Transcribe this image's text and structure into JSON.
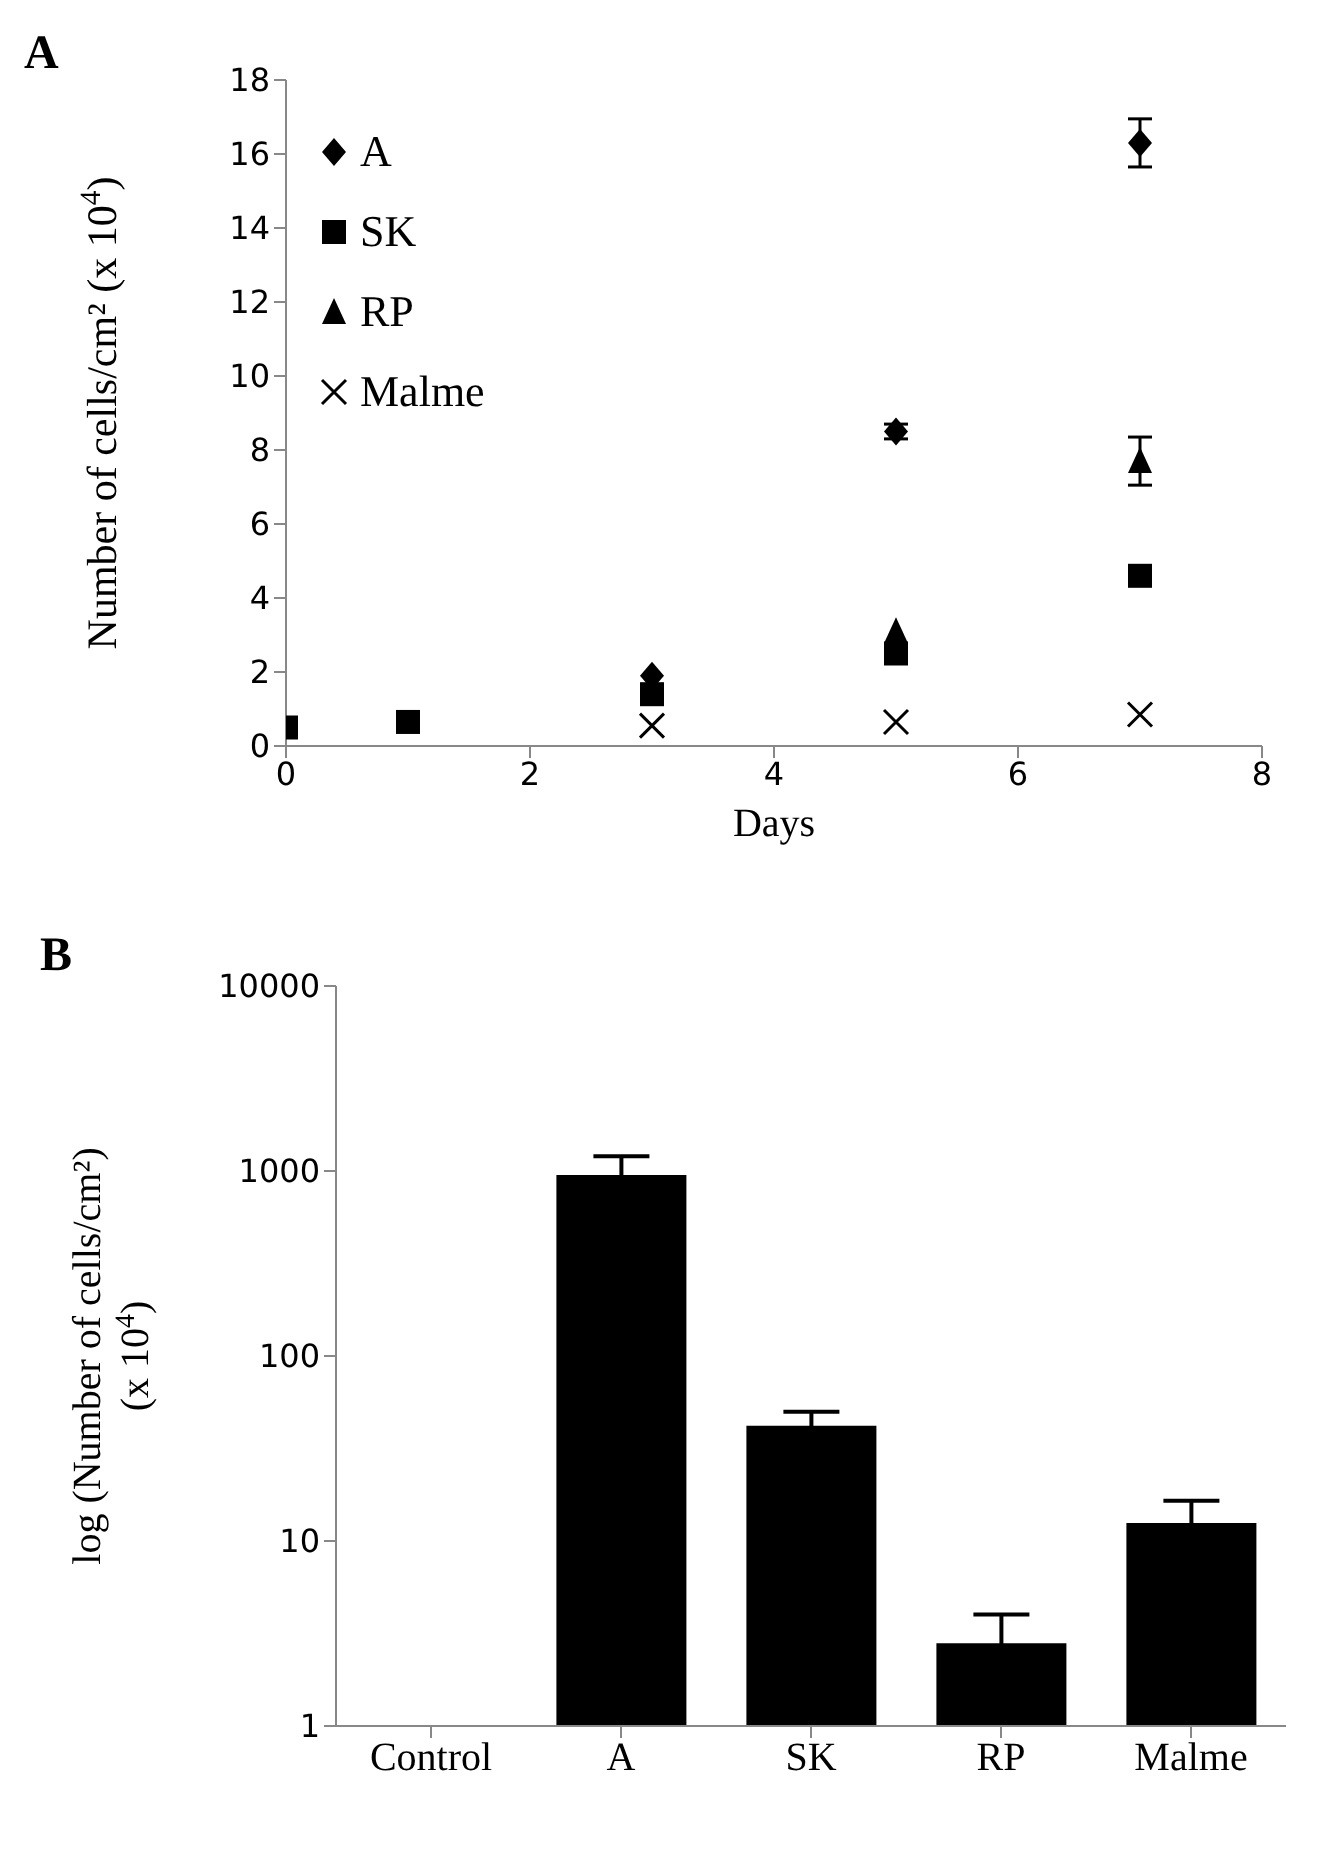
{
  "chart_data": [
    {
      "type": "scatter",
      "title": "A",
      "xlabel": "Days",
      "ylabel": "Number of cells/cm² (x 10$^{4}$)",
      "x": [
        0,
        1,
        3,
        5,
        7
      ],
      "xlim": [
        0,
        8
      ],
      "xticks": [
        0,
        2,
        4,
        6,
        8
      ],
      "ylim": [
        0,
        18
      ],
      "yticks": [
        0,
        2,
        4,
        6,
        8,
        10,
        12,
        14,
        16,
        18
      ],
      "legend": "top left",
      "series": [
        {
          "name": "A",
          "color": "#000000",
          "marker": "diamond",
          "values": [
            null,
            null,
            1.9,
            8.5,
            16.3
          ],
          "errors": [
            null,
            null,
            null,
            0.2,
            0.65
          ]
        },
        {
          "name": "SK",
          "color": "#000000",
          "marker": "square",
          "values": [
            0.5,
            0.65,
            1.4,
            2.5,
            4.6
          ],
          "errors": [
            null,
            null,
            null,
            null,
            null
          ]
        },
        {
          "name": "RP",
          "color": "#000000",
          "marker": "triangle",
          "values": [
            null,
            null,
            null,
            3.1,
            7.7
          ],
          "errors": [
            null,
            null,
            null,
            null,
            0.65
          ]
        },
        {
          "name": "Malme",
          "color": "#000000",
          "marker": "cross",
          "values": [
            null,
            null,
            0.55,
            0.65,
            0.85
          ],
          "errors": [
            null,
            null,
            null,
            null,
            null
          ]
        }
      ]
    },
    {
      "type": "bar",
      "title": "B",
      "ylabel": "log (Number of cells/cm²) (x 10$^{4}$)",
      "categories": [
        "Control",
        "A",
        "SK",
        "RP",
        "Malme"
      ],
      "values": [
        null,
        950,
        42,
        2.8,
        12.5
      ],
      "errors": [
        null,
        250,
        8,
        1.2,
        4
      ],
      "color": "#000000",
      "log": true,
      "ylim": [
        1,
        10000
      ],
      "yticks": [
        1,
        10,
        100,
        1000,
        10000
      ],
      "legend": false
    }
  ]
}
